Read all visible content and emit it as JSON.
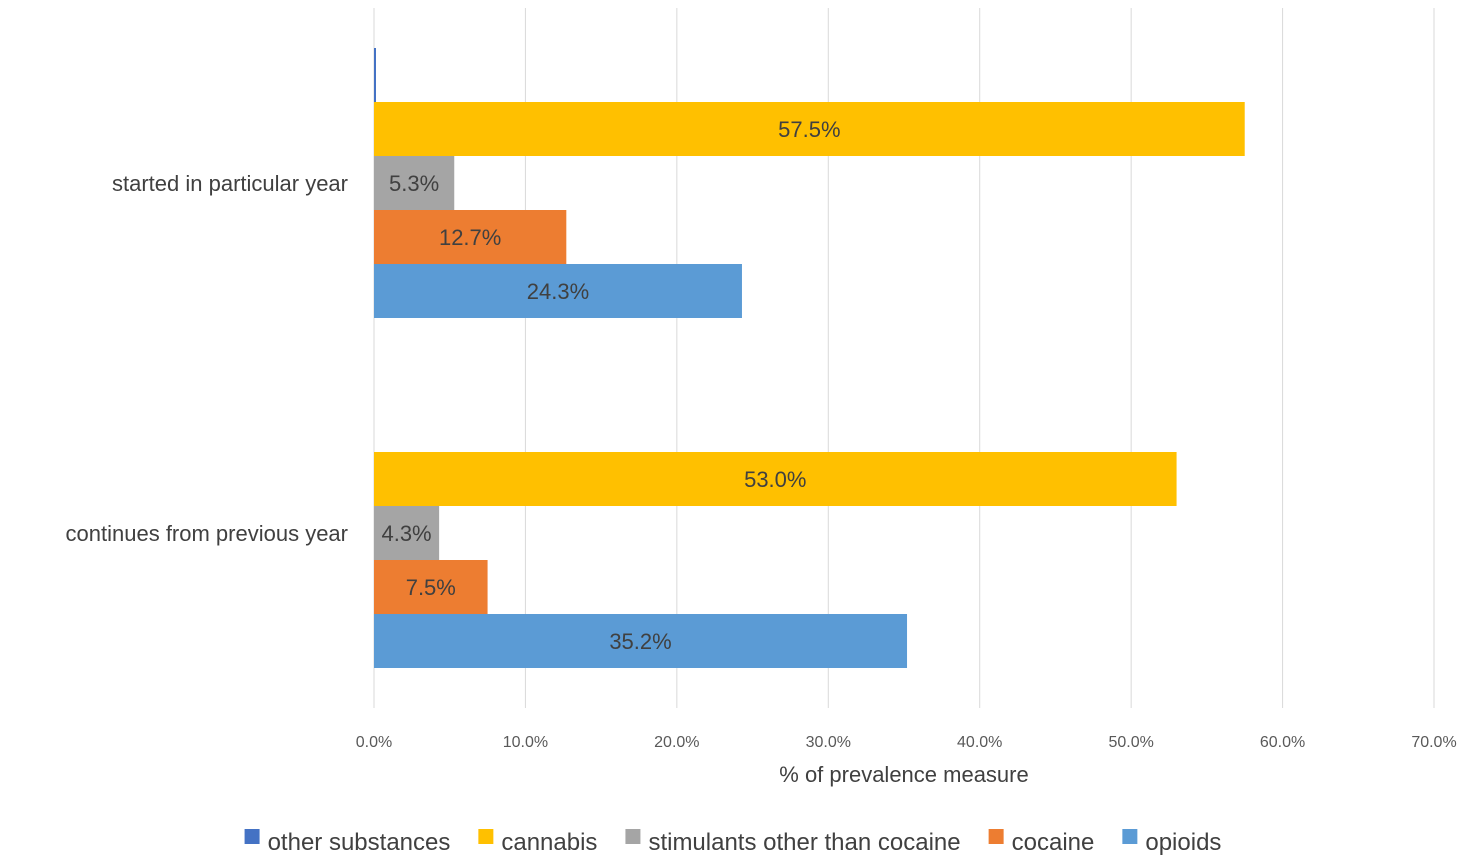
{
  "chart_data": {
    "type": "bar",
    "orientation": "horizontal",
    "categories": [
      "continues from previous year",
      "started in particular year"
    ],
    "xlabel": "% of prevalence measure",
    "ylabel": "",
    "xlim": [
      0,
      70
    ],
    "xticks": [
      "0.0%",
      "10.0%",
      "20.0%",
      "30.0%",
      "40.0%",
      "50.0%",
      "60.0%",
      "70.0%"
    ],
    "grid": true,
    "legend_position": "bottom",
    "series": [
      {
        "name": "other substances",
        "color": "#4472C4",
        "values": [
          0.0,
          0.1
        ],
        "labels": [
          "",
          ""
        ]
      },
      {
        "name": "cannabis",
        "color": "#FFC000",
        "values": [
          53.0,
          57.5
        ],
        "labels": [
          "53.0%",
          "57.5%"
        ]
      },
      {
        "name": "stimulants other than cocaine",
        "color": "#A5A5A5",
        "values": [
          4.3,
          5.3
        ],
        "labels": [
          "4.3%",
          "5.3%"
        ]
      },
      {
        "name": "cocaine",
        "color": "#ED7D31",
        "values": [
          7.5,
          12.7
        ],
        "labels": [
          "7.5%",
          "12.7%"
        ]
      },
      {
        "name": "opioids",
        "color": "#5B9BD5",
        "values": [
          35.2,
          24.3
        ],
        "labels": [
          "35.2%",
          "24.3%"
        ]
      }
    ]
  }
}
